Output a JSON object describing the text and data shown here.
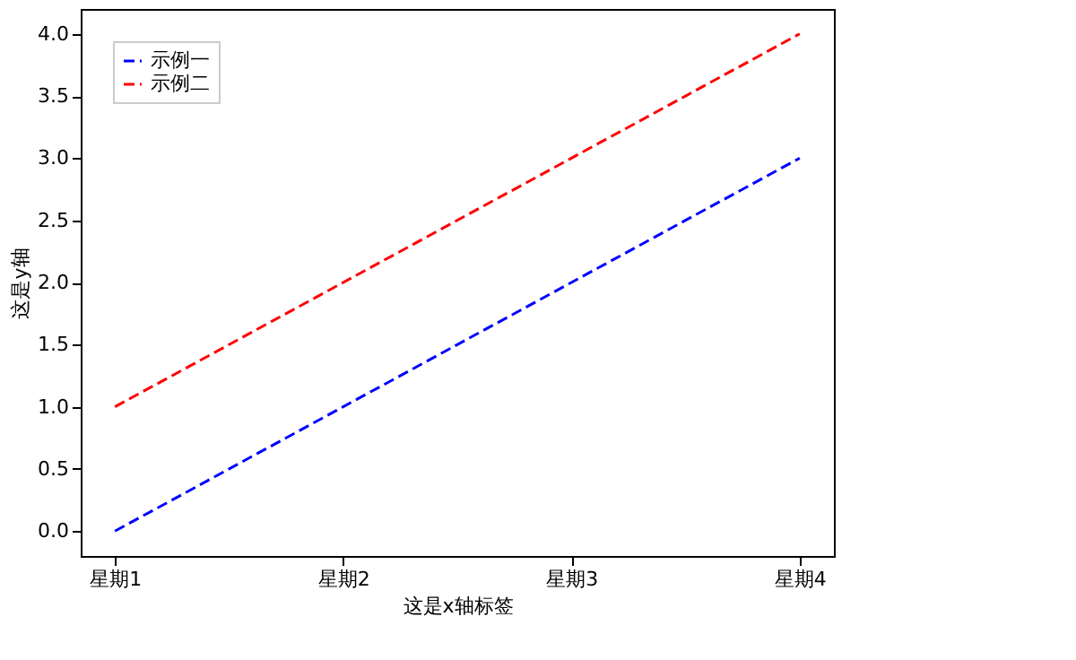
{
  "chart_data": {
    "type": "line",
    "xlabel": "这是x轴标签",
    "ylabel": "这是y轴",
    "categories": [
      "星期1",
      "星期2",
      "星期3",
      "星期4"
    ],
    "series": [
      {
        "name": "示例一",
        "color": "#0000ff",
        "values": [
          0,
          1,
          2,
          3
        ],
        "line_style": "dashed"
      },
      {
        "name": "示例二",
        "color": "#ff0000",
        "values": [
          1,
          2,
          3,
          4
        ],
        "line_style": "dashed"
      }
    ],
    "ylim": [
      -0.2,
      4.2
    ],
    "yticks": [
      {
        "value": 0,
        "label": "0.0"
      },
      {
        "value": 0.5,
        "label": "0.5"
      },
      {
        "value": 1,
        "label": "1.0"
      },
      {
        "value": 1.5,
        "label": "1.5"
      },
      {
        "value": 2,
        "label": "2.0"
      },
      {
        "value": 2.5,
        "label": "2.5"
      },
      {
        "value": 3,
        "label": "3.0"
      },
      {
        "value": 3.5,
        "label": "3.5"
      },
      {
        "value": 4,
        "label": "4.0"
      }
    ],
    "grid": false,
    "legend": "top left",
    "marker": "none"
  }
}
